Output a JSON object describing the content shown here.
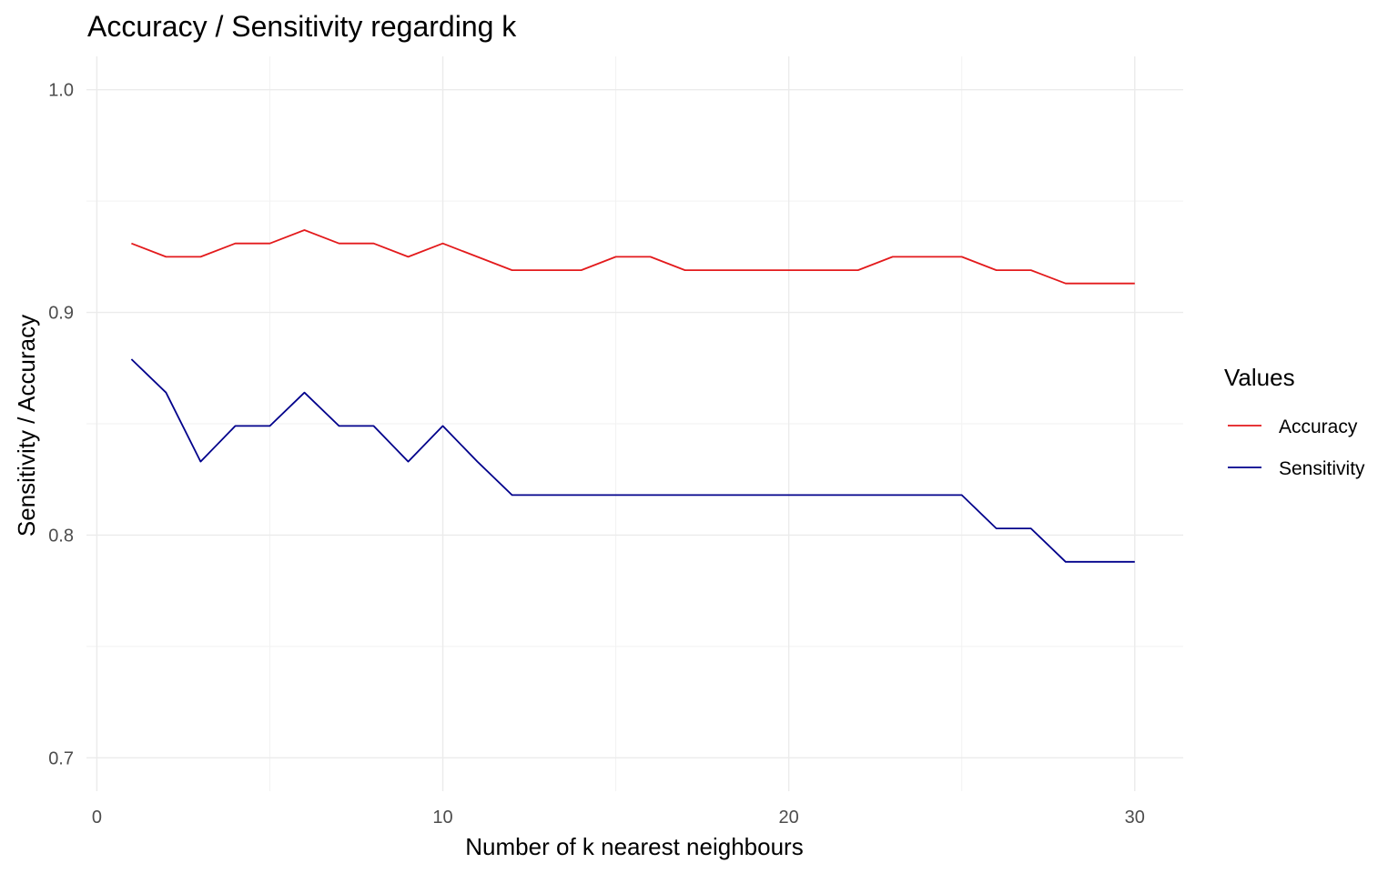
{
  "chart_data": {
    "type": "line",
    "title": "Accuracy / Sensitivity regarding k",
    "xlabel": "Number of k nearest neighbours",
    "ylabel": "Sensitivity / Accuracy",
    "xlim": [
      -0.3,
      31.4
    ],
    "ylim": [
      0.685,
      1.015
    ],
    "x_ticks": [
      0,
      10,
      20,
      30
    ],
    "x_tick_labels": [
      "0",
      "10",
      "20",
      "30"
    ],
    "x_minor": [
      5,
      15,
      25
    ],
    "y_ticks": [
      0.7,
      0.8,
      0.9,
      1.0
    ],
    "y_tick_labels": [
      "0.7",
      "0.8",
      "0.9",
      "1.0"
    ],
    "y_minor": [
      0.75,
      0.85,
      0.95
    ],
    "grid": true,
    "legend": {
      "title": "Values",
      "position": "right"
    },
    "x": [
      1,
      2,
      3,
      4,
      5,
      6,
      7,
      8,
      9,
      10,
      11,
      12,
      13,
      14,
      15,
      16,
      17,
      18,
      19,
      20,
      21,
      22,
      23,
      24,
      25,
      26,
      27,
      28,
      29,
      30
    ],
    "series": [
      {
        "name": "Accuracy",
        "color": "#e31a1c",
        "values": [
          0.931,
          0.925,
          0.925,
          0.931,
          0.931,
          0.937,
          0.931,
          0.931,
          0.925,
          0.931,
          0.925,
          0.919,
          0.919,
          0.919,
          0.925,
          0.925,
          0.919,
          0.919,
          0.919,
          0.919,
          0.919,
          0.919,
          0.925,
          0.925,
          0.925,
          0.919,
          0.919,
          0.913,
          0.913,
          0.913
        ]
      },
      {
        "name": "Sensitivity",
        "color": "#00008b",
        "values": [
          0.879,
          0.864,
          0.833,
          0.849,
          0.849,
          0.864,
          0.849,
          0.849,
          0.833,
          0.849,
          0.833,
          0.818,
          0.818,
          0.818,
          0.818,
          0.818,
          0.818,
          0.818,
          0.818,
          0.818,
          0.818,
          0.818,
          0.818,
          0.818,
          0.818,
          0.803,
          0.803,
          0.788,
          0.788,
          0.788
        ]
      }
    ]
  }
}
